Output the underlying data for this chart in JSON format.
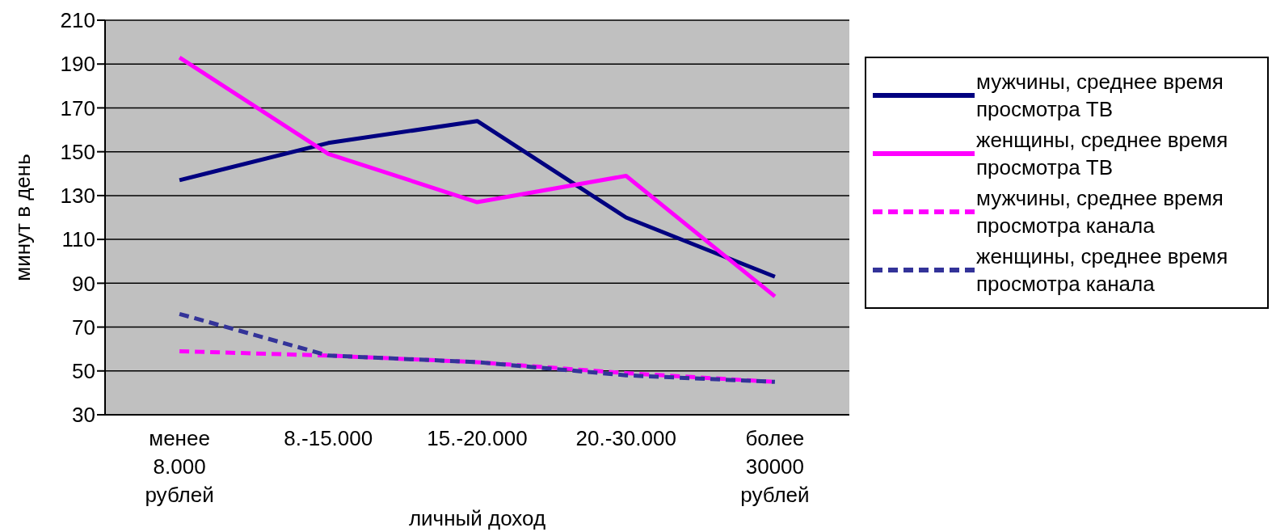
{
  "chart_data": {
    "type": "line",
    "xlabel": "личный доход",
    "ylabel": "минут в день",
    "categories": [
      "менее 8.000 рублей",
      "8.-15.000",
      "15.-20.000",
      "20.-30.000",
      "более 30000 рублей"
    ],
    "series": [
      {
        "name": "мужчины, среднее время просмотра ТВ",
        "color": "#000080",
        "values": [
          137,
          154,
          164,
          120,
          93
        ],
        "line_style": "solid"
      },
      {
        "name": "женщины, среднее время просмотра ТВ",
        "color": "#ff00ff",
        "values": [
          193,
          149,
          127,
          139,
          84
        ],
        "line_style": "solid"
      },
      {
        "name": "мужчины, среднее время просмотра канала",
        "color": "#ff00ff",
        "values": [
          59,
          57,
          54,
          49,
          45
        ],
        "line_style": "dashed"
      },
      {
        "name": "женщины, среднее время просмотра канала",
        "color": "#333399",
        "values": [
          76,
          57,
          54,
          48,
          45
        ],
        "line_style": "dashed"
      }
    ],
    "ylim": [
      30,
      210
    ],
    "yticks": [
      30,
      50,
      70,
      90,
      110,
      130,
      150,
      170,
      190,
      210
    ],
    "grid": "y",
    "legend": "right",
    "marker": "none"
  }
}
